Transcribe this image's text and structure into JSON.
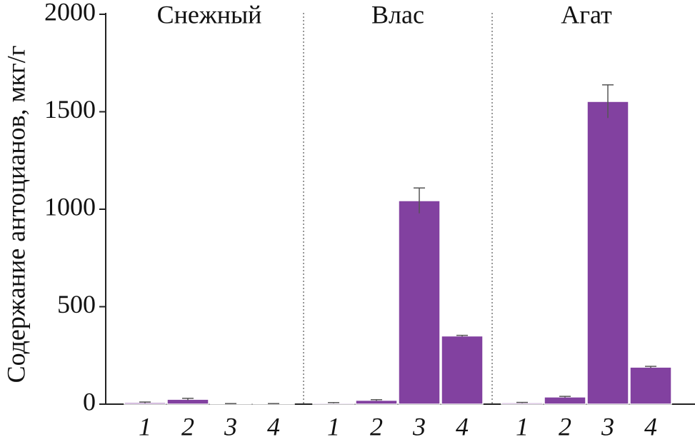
{
  "chart_data": {
    "type": "bar",
    "ylabel": "Содержание антоцианов, мкг/г",
    "groups": [
      "Снежный",
      "Влас",
      "Агат"
    ],
    "categories": [
      "1",
      "2",
      "3",
      "4",
      "1",
      "2",
      "3",
      "4",
      "1",
      "2",
      "3",
      "4"
    ],
    "values": [
      8,
      25,
      2,
      2,
      6,
      20,
      1044,
      350,
      7,
      37,
      1553,
      190
    ],
    "errors": [
      3,
      5,
      1,
      1,
      2,
      3,
      65,
      3,
      2,
      3,
      85,
      4
    ],
    "color": "#8241a0",
    "ylim": [
      0,
      2000
    ],
    "yticks": [
      0,
      500,
      1000,
      1500,
      2000
    ]
  }
}
